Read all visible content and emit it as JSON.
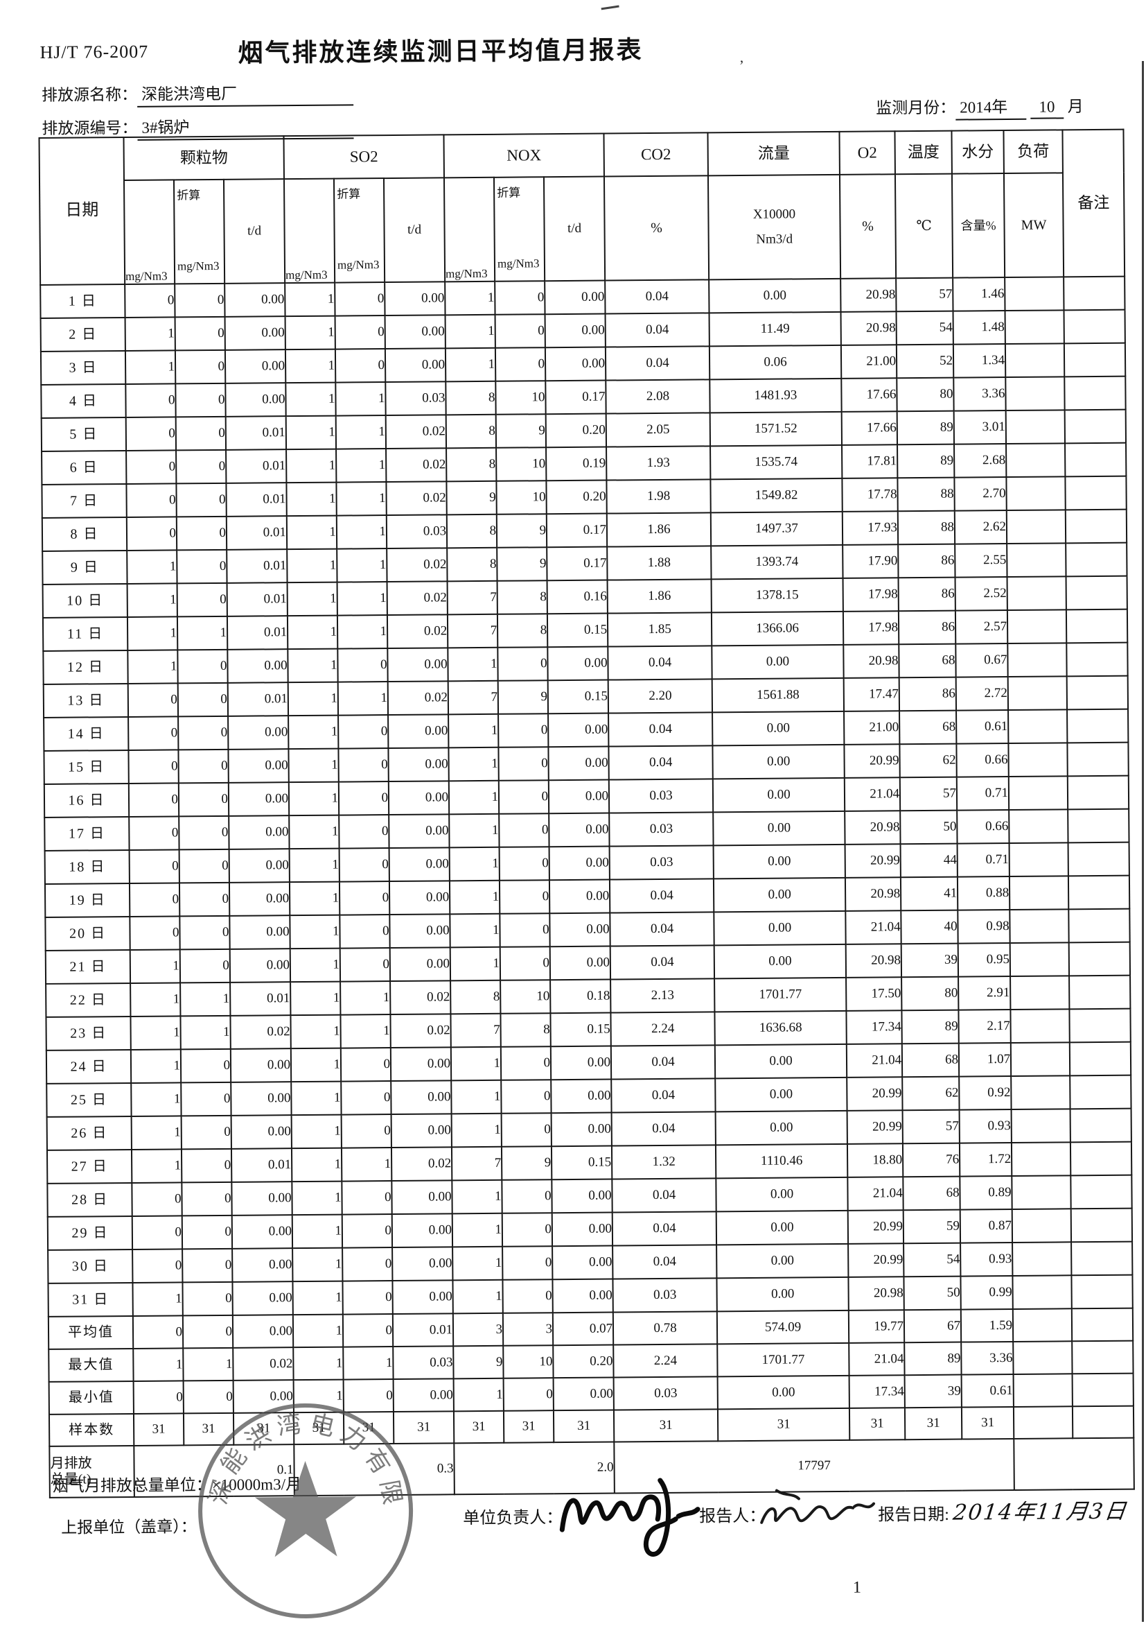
{
  "header": {
    "standard": "HJ/T 76-2007",
    "title": "烟气排放连续监测日平均值月报表",
    "source_name_label": "排放源名称：",
    "source_name": "深能洪湾电厂",
    "source_code_label": "排放源编号：",
    "source_code": "3#锅炉",
    "monitor_month_label": "监测月份：",
    "monitor_month_year": "2014年",
    "monitor_month_num": "10",
    "monitor_month_unit": "月"
  },
  "table": {
    "col_headers": {
      "date": "日期",
      "pm_label": "颗粒物",
      "so2_label": "SO2",
      "nox_label": "NOX",
      "sub_mg": "mg/Nm3",
      "sub_zhesuan": "折算",
      "sub_td": "t/d",
      "co2_label": "CO2",
      "co2_unit": "%",
      "flow_label": "流量",
      "flow_unit1": "X10000",
      "flow_unit2": "Nm3/d",
      "o2_label": "O2",
      "o2_unit": "%",
      "temp_label": "温度",
      "temp_unit": "℃",
      "moisture_label": "水分",
      "moisture_unit": "含量%",
      "load_label": "负荷",
      "load_unit": "MW",
      "remark_label": "备注"
    },
    "day_rows": [
      {
        "date": "1 日",
        "v": [
          "0",
          "0",
          "0.00",
          "1",
          "0",
          "0.00",
          "1",
          "0",
          "0.00",
          "0.04",
          "0.00",
          "20.98",
          "57",
          "1.46"
        ]
      },
      {
        "date": "2 日",
        "v": [
          "1",
          "0",
          "0.00",
          "1",
          "0",
          "0.00",
          "1",
          "0",
          "0.00",
          "0.04",
          "11.49",
          "20.98",
          "54",
          "1.48"
        ]
      },
      {
        "date": "3 日",
        "v": [
          "1",
          "0",
          "0.00",
          "1",
          "0",
          "0.00",
          "1",
          "0",
          "0.00",
          "0.04",
          "0.06",
          "21.00",
          "52",
          "1.34"
        ]
      },
      {
        "date": "4 日",
        "v": [
          "0",
          "0",
          "0.00",
          "1",
          "1",
          "0.03",
          "8",
          "10",
          "0.17",
          "2.08",
          "1481.93",
          "17.66",
          "80",
          "3.36"
        ]
      },
      {
        "date": "5 日",
        "v": [
          "0",
          "0",
          "0.01",
          "1",
          "1",
          "0.02",
          "8",
          "9",
          "0.20",
          "2.05",
          "1571.52",
          "17.66",
          "89",
          "3.01"
        ]
      },
      {
        "date": "6 日",
        "v": [
          "0",
          "0",
          "0.01",
          "1",
          "1",
          "0.02",
          "8",
          "10",
          "0.19",
          "1.93",
          "1535.74",
          "17.81",
          "89",
          "2.68"
        ]
      },
      {
        "date": "7 日",
        "v": [
          "0",
          "0",
          "0.01",
          "1",
          "1",
          "0.02",
          "9",
          "10",
          "0.20",
          "1.98",
          "1549.82",
          "17.78",
          "88",
          "2.70"
        ]
      },
      {
        "date": "8 日",
        "v": [
          "0",
          "0",
          "0.01",
          "1",
          "1",
          "0.03",
          "8",
          "9",
          "0.17",
          "1.86",
          "1497.37",
          "17.93",
          "88",
          "2.62"
        ]
      },
      {
        "date": "9 日",
        "v": [
          "1",
          "0",
          "0.01",
          "1",
          "1",
          "0.02",
          "8",
          "9",
          "0.17",
          "1.88",
          "1393.74",
          "17.90",
          "86",
          "2.55"
        ]
      },
      {
        "date": "10 日",
        "v": [
          "1",
          "0",
          "0.01",
          "1",
          "1",
          "0.02",
          "7",
          "8",
          "0.16",
          "1.86",
          "1378.15",
          "17.98",
          "86",
          "2.52"
        ]
      },
      {
        "date": "11 日",
        "v": [
          "1",
          "1",
          "0.01",
          "1",
          "1",
          "0.02",
          "7",
          "8",
          "0.15",
          "1.85",
          "1366.06",
          "17.98",
          "86",
          "2.57"
        ]
      },
      {
        "date": "12 日",
        "v": [
          "1",
          "0",
          "0.00",
          "1",
          "0",
          "0.00",
          "1",
          "0",
          "0.00",
          "0.04",
          "0.00",
          "20.98",
          "68",
          "0.67"
        ]
      },
      {
        "date": "13 日",
        "v": [
          "0",
          "0",
          "0.01",
          "1",
          "1",
          "0.02",
          "7",
          "9",
          "0.15",
          "2.20",
          "1561.88",
          "17.47",
          "86",
          "2.72"
        ]
      },
      {
        "date": "14 日",
        "v": [
          "0",
          "0",
          "0.00",
          "1",
          "0",
          "0.00",
          "1",
          "0",
          "0.00",
          "0.04",
          "0.00",
          "21.00",
          "68",
          "0.61"
        ]
      },
      {
        "date": "15 日",
        "v": [
          "0",
          "0",
          "0.00",
          "1",
          "0",
          "0.00",
          "1",
          "0",
          "0.00",
          "0.04",
          "0.00",
          "20.99",
          "62",
          "0.66"
        ]
      },
      {
        "date": "16 日",
        "v": [
          "0",
          "0",
          "0.00",
          "1",
          "0",
          "0.00",
          "1",
          "0",
          "0.00",
          "0.03",
          "0.00",
          "21.04",
          "57",
          "0.71"
        ]
      },
      {
        "date": "17 日",
        "v": [
          "0",
          "0",
          "0.00",
          "1",
          "0",
          "0.00",
          "1",
          "0",
          "0.00",
          "0.03",
          "0.00",
          "20.98",
          "50",
          "0.66"
        ]
      },
      {
        "date": "18 日",
        "v": [
          "0",
          "0",
          "0.00",
          "1",
          "0",
          "0.00",
          "1",
          "0",
          "0.00",
          "0.03",
          "0.00",
          "20.99",
          "44",
          "0.71"
        ]
      },
      {
        "date": "19 日",
        "v": [
          "0",
          "0",
          "0.00",
          "1",
          "0",
          "0.00",
          "1",
          "0",
          "0.00",
          "0.04",
          "0.00",
          "20.98",
          "41",
          "0.88"
        ]
      },
      {
        "date": "20 日",
        "v": [
          "0",
          "0",
          "0.00",
          "1",
          "0",
          "0.00",
          "1",
          "0",
          "0.00",
          "0.04",
          "0.00",
          "21.04",
          "40",
          "0.98"
        ]
      },
      {
        "date": "21 日",
        "v": [
          "1",
          "0",
          "0.00",
          "1",
          "0",
          "0.00",
          "1",
          "0",
          "0.00",
          "0.04",
          "0.00",
          "20.98",
          "39",
          "0.95"
        ]
      },
      {
        "date": "22 日",
        "v": [
          "1",
          "1",
          "0.01",
          "1",
          "1",
          "0.02",
          "8",
          "10",
          "0.18",
          "2.13",
          "1701.77",
          "17.50",
          "80",
          "2.91"
        ]
      },
      {
        "date": "23 日",
        "v": [
          "1",
          "1",
          "0.02",
          "1",
          "1",
          "0.02",
          "7",
          "8",
          "0.15",
          "2.24",
          "1636.68",
          "17.34",
          "89",
          "2.17"
        ]
      },
      {
        "date": "24 日",
        "v": [
          "1",
          "0",
          "0.00",
          "1",
          "0",
          "0.00",
          "1",
          "0",
          "0.00",
          "0.04",
          "0.00",
          "21.04",
          "68",
          "1.07"
        ]
      },
      {
        "date": "25 日",
        "v": [
          "1",
          "0",
          "0.00",
          "1",
          "0",
          "0.00",
          "1",
          "0",
          "0.00",
          "0.04",
          "0.00",
          "20.99",
          "62",
          "0.92"
        ]
      },
      {
        "date": "26 日",
        "v": [
          "1",
          "0",
          "0.00",
          "1",
          "0",
          "0.00",
          "1",
          "0",
          "0.00",
          "0.04",
          "0.00",
          "20.99",
          "57",
          "0.93"
        ]
      },
      {
        "date": "27 日",
        "v": [
          "1",
          "0",
          "0.01",
          "1",
          "1",
          "0.02",
          "7",
          "9",
          "0.15",
          "1.32",
          "1110.46",
          "18.80",
          "76",
          "1.72"
        ]
      },
      {
        "date": "28 日",
        "v": [
          "0",
          "0",
          "0.00",
          "1",
          "0",
          "0.00",
          "1",
          "0",
          "0.00",
          "0.04",
          "0.00",
          "21.04",
          "68",
          "0.89"
        ]
      },
      {
        "date": "29 日",
        "v": [
          "0",
          "0",
          "0.00",
          "1",
          "0",
          "0.00",
          "1",
          "0",
          "0.00",
          "0.04",
          "0.00",
          "20.99",
          "59",
          "0.87"
        ]
      },
      {
        "date": "30 日",
        "v": [
          "0",
          "0",
          "0.00",
          "1",
          "0",
          "0.00",
          "1",
          "0",
          "0.00",
          "0.04",
          "0.00",
          "20.99",
          "54",
          "0.93"
        ]
      },
      {
        "date": "31 日",
        "v": [
          "1",
          "0",
          "0.00",
          "1",
          "0",
          "0.00",
          "1",
          "0",
          "0.00",
          "0.03",
          "0.00",
          "20.98",
          "50",
          "0.99"
        ]
      }
    ],
    "summary_rows": [
      {
        "label": "平均值",
        "v": [
          "0",
          "0",
          "0.00",
          "1",
          "0",
          "0.01",
          "3",
          "3",
          "0.07",
          "0.78",
          "574.09",
          "19.77",
          "67",
          "1.59"
        ]
      },
      {
        "label": "最大值",
        "v": [
          "1",
          "1",
          "0.02",
          "1",
          "1",
          "0.03",
          "9",
          "10",
          "0.20",
          "2.24",
          "1701.77",
          "21.04",
          "89",
          "3.36"
        ]
      },
      {
        "label": "最小值",
        "v": [
          "0",
          "0",
          "0.00",
          "1",
          "0",
          "0.00",
          "1",
          "0",
          "0.00",
          "0.03",
          "0.00",
          "17.34",
          "39",
          "0.61"
        ]
      }
    ],
    "sample_row": {
      "label": "样本数",
      "v": [
        "31",
        "31",
        "31",
        "31",
        "31",
        "31",
        "31",
        "31",
        "31",
        "31",
        "31",
        "31",
        "31",
        "31"
      ]
    },
    "monthly_row": {
      "label_line1": "月排放",
      "label_line2": "总量(t)",
      "pm": "0.1",
      "so2": "0.3",
      "nox": "2.0",
      "flue": "17797"
    }
  },
  "footer": {
    "total_unit_label": "烟气月排放总量单位：",
    "total_unit_value": "×10000m3/月",
    "report_org_label": "上报单位（盖章）：",
    "responsible_label": "单位负责人：",
    "reporter_label": "报告人：",
    "report_date_label": "报告日期:",
    "report_date_value": "2014年11月3日",
    "seal_text": "深能洪湾电力有限公司",
    "page_number": "1"
  }
}
